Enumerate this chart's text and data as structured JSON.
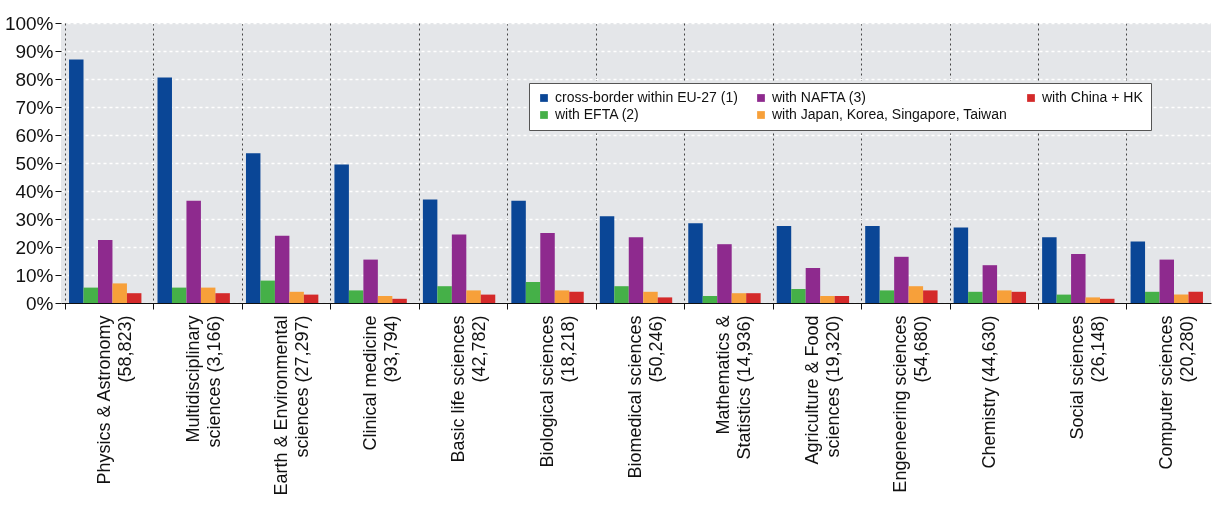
{
  "chart_data": {
    "type": "bar",
    "categories": [
      "Physics & Astronomy (58,823)",
      "Multidisciplinary sciences (3,166)",
      "Earth & Environmental sciences (27,297)",
      "Clinical medicine (93,794)",
      "Basic life sciences (42,782)",
      "Biological sciences (18,218)",
      "Biomedical sciences (50,246)",
      "Mathematics & Statistics (14,936)",
      "Agriculture & Food sciences (19,320)",
      "Engeneering sciences (54,680)",
      "Chemistry (44,630)",
      "Social sciences (26,148)",
      "Computer sciences (20,280)"
    ],
    "series": [
      {
        "name": "cross-border within EU-27 (1)",
        "color": "#0a4696",
        "values": [
          87,
          80.5,
          53.5,
          49.5,
          37,
          36.5,
          31,
          28.5,
          27.5,
          27.5,
          27,
          23.5,
          22
        ]
      },
      {
        "name": "with EFTA (2)",
        "color": "#45b048",
        "values": [
          5.5,
          5.5,
          8,
          4.5,
          6,
          7.5,
          6,
          2.5,
          5,
          4.5,
          4,
          3,
          4
        ]
      },
      {
        "name": "with NAFTA (3)",
        "color": "#8e2a8e",
        "values": [
          22.5,
          36.5,
          24,
          15.5,
          24.5,
          25,
          23.5,
          21,
          12.5,
          16.5,
          13.5,
          17.5,
          15.5
        ]
      },
      {
        "name": "with Japan, Korea, Singapore, Taiwan",
        "color": "#f7a03a",
        "values": [
          7,
          5.5,
          4,
          2.5,
          4.5,
          4.5,
          4,
          3.5,
          2.5,
          6,
          4.5,
          2,
          3
        ]
      },
      {
        "name": "with China + HK",
        "color": "#d42a2a",
        "values": [
          3.5,
          3.5,
          3,
          1.5,
          3,
          4,
          2,
          3.5,
          2.5,
          4.5,
          4,
          1.5,
          4
        ]
      }
    ],
    "ylim": [
      0,
      100
    ],
    "yticks": [
      {
        "value": 0,
        "label": "0%"
      },
      {
        "value": 10,
        "label": "10%"
      },
      {
        "value": 20,
        "label": "20%"
      },
      {
        "value": 30,
        "label": "30%"
      },
      {
        "value": 40,
        "label": "40%"
      },
      {
        "value": 50,
        "label": "50%"
      },
      {
        "value": 60,
        "label": "60%"
      },
      {
        "value": 70,
        "label": "70%"
      },
      {
        "value": 80,
        "label": "80%"
      },
      {
        "value": 90,
        "label": "90%"
      },
      {
        "value": 100,
        "label": "100%"
      }
    ],
    "grid": true,
    "legend": "top right"
  }
}
